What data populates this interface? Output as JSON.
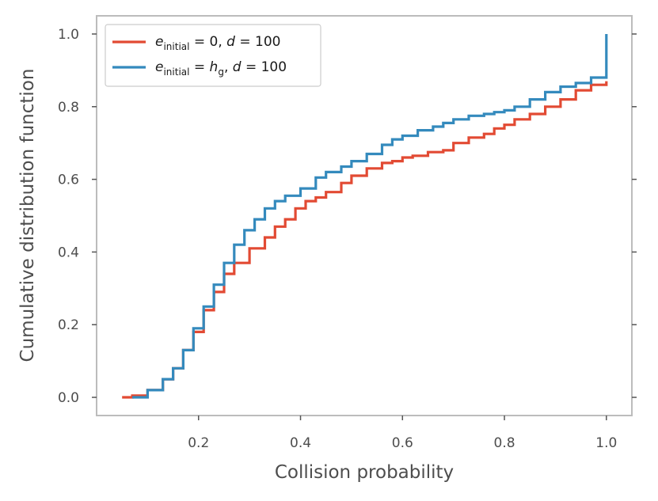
{
  "chart_data": {
    "type": "line",
    "title": "",
    "xlabel": "Collision probability",
    "ylabel": "Cumulative distribution function",
    "xlim": [
      0.0,
      1.05
    ],
    "ylim": [
      -0.05,
      1.05
    ],
    "xticks": [
      0.2,
      0.4,
      0.6,
      0.8,
      1.0
    ],
    "xtick_labels": [
      "0.2",
      "0.4",
      "0.6",
      "0.8",
      "1.0"
    ],
    "yticks": [
      0.0,
      0.2,
      0.4,
      0.6,
      0.8,
      1.0
    ],
    "ytick_labels": [
      "0.0",
      "0.2",
      "0.4",
      "0.6",
      "0.8",
      "1.0"
    ],
    "grid": false,
    "legend_position": "top-left",
    "series": [
      {
        "name": "e_initial = 0, d = 100",
        "color": "#E24A33",
        "legend": {
          "var": "e",
          "sub": "initial",
          "eq": "= 0,",
          "d": "d",
          "deq": "= 100"
        },
        "x": [
          0.05,
          0.07,
          0.1,
          0.13,
          0.15,
          0.17,
          0.19,
          0.21,
          0.23,
          0.25,
          0.27,
          0.3,
          0.33,
          0.35,
          0.37,
          0.39,
          0.41,
          0.43,
          0.45,
          0.48,
          0.5,
          0.53,
          0.56,
          0.58,
          0.6,
          0.62,
          0.65,
          0.68,
          0.7,
          0.73,
          0.76,
          0.78,
          0.8,
          0.82,
          0.85,
          0.88,
          0.91,
          0.94,
          0.97,
          1.0,
          1.0
        ],
        "y": [
          0.0,
          0.005,
          0.02,
          0.05,
          0.08,
          0.13,
          0.18,
          0.24,
          0.29,
          0.34,
          0.37,
          0.41,
          0.44,
          0.47,
          0.49,
          0.52,
          0.54,
          0.55,
          0.565,
          0.59,
          0.61,
          0.63,
          0.645,
          0.65,
          0.66,
          0.665,
          0.675,
          0.68,
          0.7,
          0.715,
          0.725,
          0.74,
          0.75,
          0.765,
          0.78,
          0.8,
          0.82,
          0.845,
          0.86,
          0.87,
          0.87
        ]
      },
      {
        "name": "e_initial = h_g, d = 100",
        "color": "#348ABD",
        "legend": {
          "var": "e",
          "sub": "initial",
          "eq": "=",
          "hvar": "h",
          "hsub": "g",
          "sep": ",",
          "d": "d",
          "deq": "= 100"
        },
        "x": [
          0.07,
          0.1,
          0.13,
          0.15,
          0.17,
          0.19,
          0.21,
          0.23,
          0.25,
          0.27,
          0.29,
          0.31,
          0.33,
          0.35,
          0.37,
          0.4,
          0.43,
          0.45,
          0.48,
          0.5,
          0.53,
          0.56,
          0.58,
          0.6,
          0.63,
          0.66,
          0.68,
          0.7,
          0.73,
          0.76,
          0.78,
          0.8,
          0.82,
          0.85,
          0.88,
          0.91,
          0.94,
          0.97,
          1.0,
          1.0
        ],
        "y": [
          0.0,
          0.02,
          0.05,
          0.08,
          0.13,
          0.19,
          0.25,
          0.31,
          0.37,
          0.42,
          0.46,
          0.49,
          0.52,
          0.54,
          0.555,
          0.575,
          0.605,
          0.62,
          0.635,
          0.65,
          0.67,
          0.695,
          0.71,
          0.72,
          0.735,
          0.745,
          0.755,
          0.765,
          0.775,
          0.78,
          0.785,
          0.79,
          0.8,
          0.82,
          0.84,
          0.855,
          0.865,
          0.88,
          0.89,
          1.0
        ]
      }
    ]
  }
}
